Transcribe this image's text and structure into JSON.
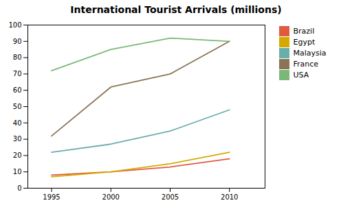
{
  "chart_data": {
    "type": "line",
    "title": "International Tourist Arrivals (millions)",
    "x": [
      1995,
      2000,
      2005,
      2010
    ],
    "series": [
      {
        "name": "Brazil",
        "color": "#e05a40",
        "values": [
          8,
          10,
          13,
          18
        ]
      },
      {
        "name": "Egypt",
        "color": "#d4aa00",
        "values": [
          7,
          10,
          15,
          22
        ]
      },
      {
        "name": "Malaysia",
        "color": "#6aaeaa",
        "values": [
          22,
          27,
          35,
          48
        ]
      },
      {
        "name": "France",
        "color": "#8b7355",
        "values": [
          32,
          62,
          70,
          90
        ]
      },
      {
        "name": "USA",
        "color": "#7ab87a",
        "values": [
          72,
          85,
          92,
          90
        ]
      }
    ],
    "xlim": [
      1993,
      2013
    ],
    "xticks": [
      1995,
      2000,
      2005,
      2010
    ],
    "ylim": [
      0,
      100
    ],
    "yticks": [
      0,
      10,
      20,
      30,
      40,
      50,
      60,
      70,
      80,
      90,
      100
    ],
    "grid": false,
    "legend": "right"
  }
}
